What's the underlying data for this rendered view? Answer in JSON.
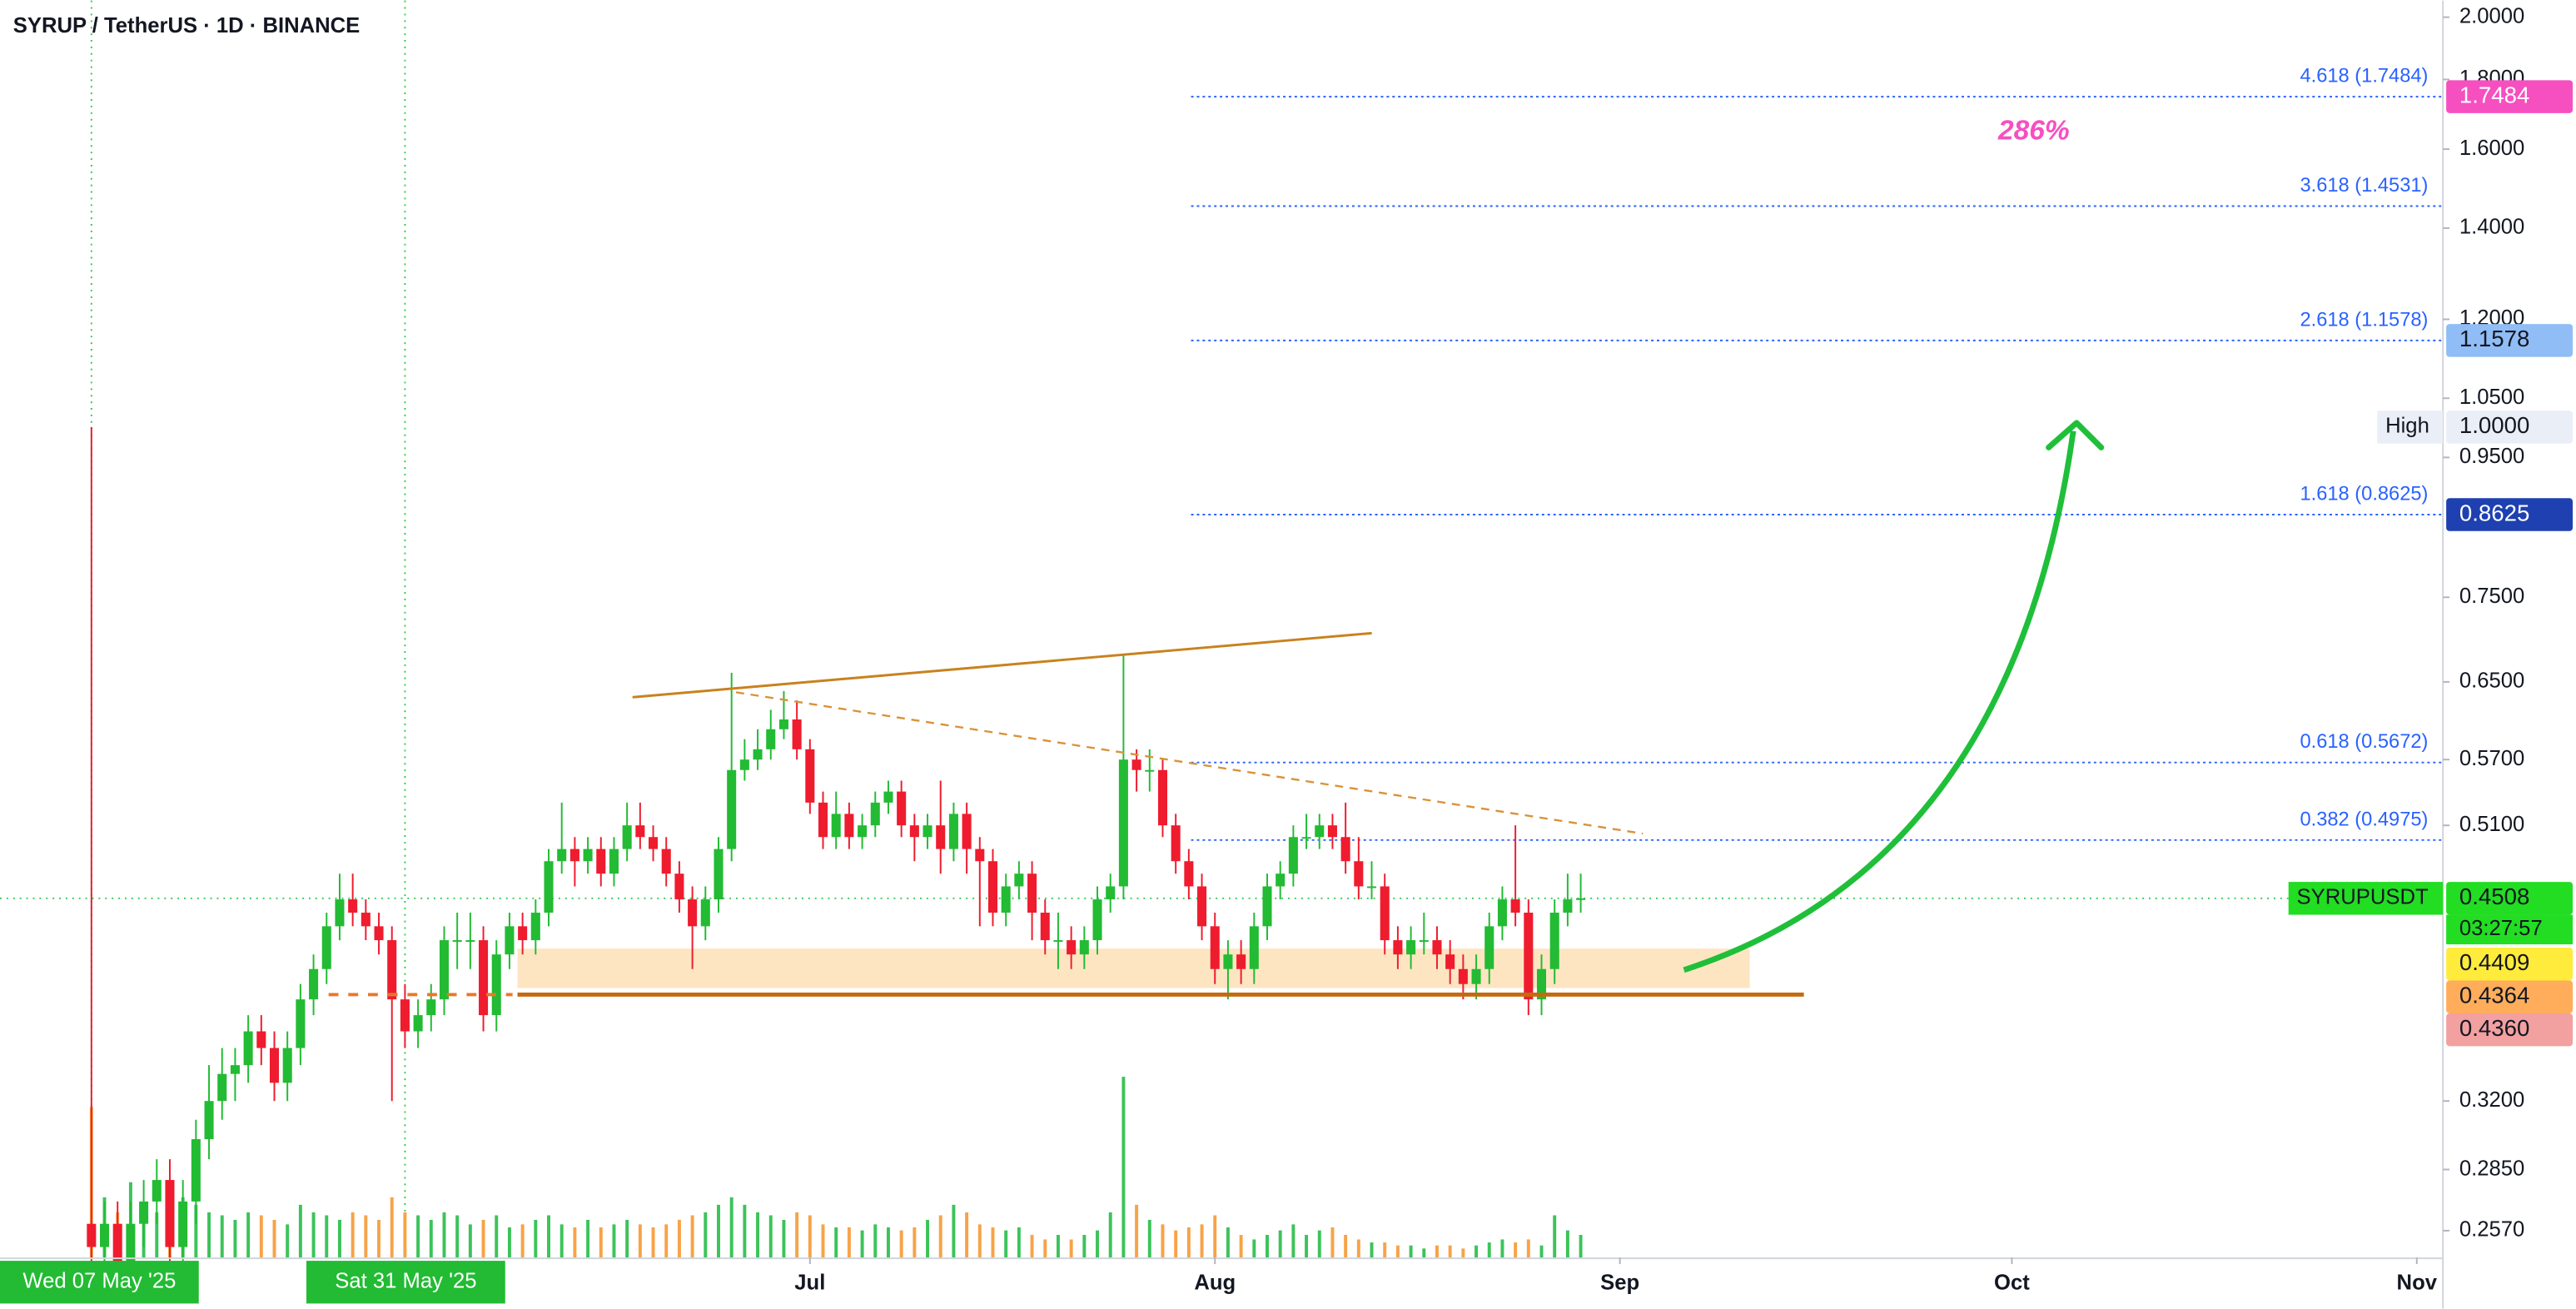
{
  "chart_data": {
    "type": "candlestick",
    "title": "SYRUP / TetherUS · 1D · BINANCE",
    "log_scale": true,
    "ylim": [
      0.2456,
      2.057
    ],
    "yticks": [
      {
        "value": 2,
        "label": "2.0000"
      },
      {
        "value": 1.8,
        "label": "1.8000"
      },
      {
        "value": 1.6,
        "label": "1.6000"
      },
      {
        "value": 1.4,
        "label": "1.4000"
      },
      {
        "value": 1.2,
        "label": "1.2000"
      },
      {
        "value": 1.05,
        "label": "1.0500"
      },
      {
        "value": 0.95,
        "label": "0.9500"
      },
      {
        "value": 0.75,
        "label": "0.7500"
      },
      {
        "value": 0.65,
        "label": "0.6500"
      },
      {
        "value": 0.57,
        "label": "0.5700"
      },
      {
        "value": 0.51,
        "label": "0.5100"
      },
      {
        "value": 0.32,
        "label": "0.3200"
      },
      {
        "value": 0.285,
        "label": "0.2850"
      },
      {
        "value": 0.257,
        "label": "0.2570"
      }
    ],
    "xlim": [
      "2025-04-30",
      "2025-11-03"
    ],
    "xticks": [
      {
        "value": "2025-07-01",
        "label": "Jul"
      },
      {
        "value": "2025-08-01",
        "label": "Aug"
      },
      {
        "value": "2025-09-01",
        "label": "Sep"
      },
      {
        "value": "2025-10-01",
        "label": "Oct"
      },
      {
        "value": "2025-11-01",
        "label": "Nov"
      }
    ],
    "x_highlights": [
      {
        "value": "2025-05-07",
        "label": "Wed 07 May '25"
      },
      {
        "value": "2025-05-31",
        "label": "Sat 31 May '25"
      }
    ],
    "up_color": "#22bb33",
    "down_color": "#ee1c2e",
    "volume_up_color": "#3cc35a",
    "volume_down_color": "#f7a348",
    "x": [
      "2025-05-07",
      "2025-05-08",
      "2025-05-09",
      "2025-05-10",
      "2025-05-11",
      "2025-05-12",
      "2025-05-13",
      "2025-05-14",
      "2025-05-15",
      "2025-05-16",
      "2025-05-17",
      "2025-05-18",
      "2025-05-19",
      "2025-05-20",
      "2025-05-21",
      "2025-05-22",
      "2025-05-23",
      "2025-05-24",
      "2025-05-25",
      "2025-05-26",
      "2025-05-27",
      "2025-05-28",
      "2025-05-29",
      "2025-05-30",
      "2025-05-31",
      "2025-06-01",
      "2025-06-02",
      "2025-06-03",
      "2025-06-04",
      "2025-06-05",
      "2025-06-06",
      "2025-06-07",
      "2025-06-08",
      "2025-06-09",
      "2025-06-10",
      "2025-06-11",
      "2025-06-12",
      "2025-06-13",
      "2025-06-14",
      "2025-06-15",
      "2025-06-16",
      "2025-06-17",
      "2025-06-18",
      "2025-06-19",
      "2025-06-20",
      "2025-06-21",
      "2025-06-22",
      "2025-06-23",
      "2025-06-24",
      "2025-06-25",
      "2025-06-26",
      "2025-06-27",
      "2025-06-28",
      "2025-06-29",
      "2025-06-30",
      "2025-07-01",
      "2025-07-02",
      "2025-07-03",
      "2025-07-04",
      "2025-07-05",
      "2025-07-06",
      "2025-07-07",
      "2025-07-08",
      "2025-07-09",
      "2025-07-10",
      "2025-07-11",
      "2025-07-12",
      "2025-07-13",
      "2025-07-14",
      "2025-07-15",
      "2025-07-16",
      "2025-07-17",
      "2025-07-18",
      "2025-07-19",
      "2025-07-20",
      "2025-07-21",
      "2025-07-22",
      "2025-07-23",
      "2025-07-24",
      "2025-07-25",
      "2025-07-26",
      "2025-07-27",
      "2025-07-28",
      "2025-07-29",
      "2025-07-30",
      "2025-07-31",
      "2025-08-01",
      "2025-08-02",
      "2025-08-03",
      "2025-08-04",
      "2025-08-05",
      "2025-08-06",
      "2025-08-07",
      "2025-08-08",
      "2025-08-09",
      "2025-08-10",
      "2025-08-11",
      "2025-08-12",
      "2025-08-13",
      "2025-08-14",
      "2025-08-15",
      "2025-08-16",
      "2025-08-17",
      "2025-08-18",
      "2025-08-19",
      "2025-08-20",
      "2025-08-21",
      "2025-08-22",
      "2025-08-23",
      "2025-08-24",
      "2025-08-25",
      "2025-08-26",
      "2025-08-27",
      "2025-08-28",
      "2025-08-29"
    ],
    "open": [
      0.26,
      0.25,
      0.26,
      0.24,
      0.26,
      0.27,
      0.28,
      0.25,
      0.27,
      0.3,
      0.32,
      0.335,
      0.34,
      0.36,
      0.35,
      0.33,
      0.35,
      0.38,
      0.4,
      0.43,
      0.45,
      0.44,
      0.43,
      0.42,
      0.38,
      0.36,
      0.37,
      0.38,
      0.42,
      0.42,
      0.42,
      0.37,
      0.41,
      0.43,
      0.42,
      0.44,
      0.48,
      0.49,
      0.48,
      0.49,
      0.47,
      0.49,
      0.51,
      0.5,
      0.49,
      0.47,
      0.45,
      0.43,
      0.45,
      0.49,
      0.56,
      0.57,
      0.58,
      0.6,
      0.61,
      0.58,
      0.53,
      0.5,
      0.52,
      0.5,
      0.51,
      0.53,
      0.54,
      0.51,
      0.5,
      0.51,
      0.49,
      0.52,
      0.49,
      0.48,
      0.44,
      0.46,
      0.47,
      0.44,
      0.42,
      0.42,
      0.41,
      0.42,
      0.45,
      0.46,
      0.57,
      0.56,
      0.56,
      0.51,
      0.48,
      0.46,
      0.43,
      0.4,
      0.41,
      0.4,
      0.43,
      0.46,
      0.47,
      0.5,
      0.5,
      0.51,
      0.5,
      0.48,
      0.46,
      0.46,
      0.42,
      0.41,
      0.42,
      0.42,
      0.41,
      0.4,
      0.39,
      0.4,
      0.43,
      0.45,
      0.44,
      0.38,
      0.4,
      0.44,
      0.45
    ],
    "high": [
      1.0,
      0.27,
      0.27,
      0.27,
      0.28,
      0.29,
      0.29,
      0.28,
      0.31,
      0.34,
      0.35,
      0.35,
      0.37,
      0.37,
      0.36,
      0.36,
      0.39,
      0.41,
      0.44,
      0.47,
      0.47,
      0.45,
      0.44,
      0.43,
      0.39,
      0.38,
      0.39,
      0.43,
      0.44,
      0.44,
      0.43,
      0.42,
      0.44,
      0.44,
      0.45,
      0.49,
      0.53,
      0.5,
      0.5,
      0.5,
      0.5,
      0.53,
      0.53,
      0.51,
      0.5,
      0.48,
      0.46,
      0.46,
      0.5,
      0.66,
      0.59,
      0.6,
      0.62,
      0.64,
      0.63,
      0.59,
      0.54,
      0.54,
      0.53,
      0.52,
      0.54,
      0.55,
      0.55,
      0.52,
      0.52,
      0.55,
      0.53,
      0.53,
      0.5,
      0.49,
      0.47,
      0.48,
      0.48,
      0.45,
      0.44,
      0.43,
      0.43,
      0.46,
      0.47,
      0.68,
      0.58,
      0.58,
      0.57,
      0.52,
      0.49,
      0.47,
      0.44,
      0.42,
      0.42,
      0.44,
      0.47,
      0.48,
      0.51,
      0.52,
      0.52,
      0.52,
      0.53,
      0.5,
      0.48,
      0.47,
      0.43,
      0.43,
      0.44,
      0.43,
      0.42,
      0.41,
      0.41,
      0.44,
      0.46,
      0.51,
      0.45,
      0.41,
      0.45,
      0.47,
      0.47
    ],
    "low": [
      0.24,
      0.24,
      0.23,
      0.23,
      0.25,
      0.26,
      0.24,
      0.24,
      0.26,
      0.29,
      0.31,
      0.32,
      0.33,
      0.34,
      0.32,
      0.32,
      0.34,
      0.37,
      0.39,
      0.42,
      0.43,
      0.42,
      0.41,
      0.32,
      0.35,
      0.35,
      0.36,
      0.37,
      0.4,
      0.4,
      0.36,
      0.36,
      0.4,
      0.41,
      0.41,
      0.43,
      0.47,
      0.46,
      0.47,
      0.46,
      0.46,
      0.48,
      0.49,
      0.48,
      0.46,
      0.44,
      0.4,
      0.42,
      0.44,
      0.48,
      0.55,
      0.56,
      0.57,
      0.59,
      0.57,
      0.52,
      0.49,
      0.49,
      0.49,
      0.49,
      0.5,
      0.52,
      0.5,
      0.48,
      0.49,
      0.47,
      0.48,
      0.47,
      0.43,
      0.43,
      0.43,
      0.45,
      0.42,
      0.41,
      0.4,
      0.4,
      0.4,
      0.41,
      0.44,
      0.45,
      0.54,
      0.54,
      0.5,
      0.47,
      0.45,
      0.42,
      0.39,
      0.38,
      0.39,
      0.39,
      0.42,
      0.45,
      0.46,
      0.49,
      0.49,
      0.49,
      0.47,
      0.45,
      0.45,
      0.41,
      0.4,
      0.4,
      0.41,
      0.4,
      0.39,
      0.38,
      0.38,
      0.39,
      0.42,
      0.43,
      0.37,
      0.37,
      0.39,
      0.43,
      0.44
    ],
    "close": [
      0.25,
      0.26,
      0.24,
      0.26,
      0.27,
      0.28,
      0.25,
      0.27,
      0.3,
      0.32,
      0.335,
      0.34,
      0.36,
      0.35,
      0.33,
      0.35,
      0.38,
      0.4,
      0.43,
      0.45,
      0.44,
      0.43,
      0.42,
      0.38,
      0.36,
      0.37,
      0.38,
      0.42,
      0.42,
      0.42,
      0.37,
      0.41,
      0.43,
      0.42,
      0.44,
      0.48,
      0.49,
      0.48,
      0.49,
      0.47,
      0.49,
      0.51,
      0.5,
      0.49,
      0.47,
      0.45,
      0.43,
      0.45,
      0.49,
      0.56,
      0.57,
      0.58,
      0.6,
      0.61,
      0.58,
      0.53,
      0.5,
      0.52,
      0.5,
      0.51,
      0.53,
      0.54,
      0.51,
      0.5,
      0.51,
      0.49,
      0.52,
      0.49,
      0.48,
      0.44,
      0.46,
      0.47,
      0.44,
      0.42,
      0.42,
      0.41,
      0.42,
      0.45,
      0.46,
      0.57,
      0.56,
      0.56,
      0.51,
      0.48,
      0.46,
      0.43,
      0.4,
      0.41,
      0.4,
      0.43,
      0.46,
      0.47,
      0.5,
      0.5,
      0.51,
      0.5,
      0.48,
      0.46,
      0.46,
      0.42,
      0.41,
      0.42,
      0.42,
      0.41,
      0.4,
      0.39,
      0.4,
      0.43,
      0.45,
      0.44,
      0.38,
      0.4,
      0.44,
      0.45,
      0.4508
    ],
    "volume": [
      100,
      40,
      30,
      50,
      35,
      30,
      45,
      40,
      35,
      30,
      28,
      25,
      30,
      28,
      25,
      22,
      35,
      30,
      28,
      25,
      30,
      28,
      25,
      40,
      30,
      28,
      25,
      30,
      28,
      22,
      25,
      28,
      20,
      22,
      25,
      28,
      22,
      20,
      25,
      20,
      22,
      25,
      22,
      20,
      22,
      25,
      28,
      30,
      35,
      40,
      35,
      30,
      28,
      25,
      30,
      28,
      22,
      20,
      20,
      18,
      22,
      20,
      18,
      20,
      25,
      28,
      35,
      30,
      22,
      20,
      18,
      20,
      15,
      12,
      15,
      12,
      15,
      18,
      30,
      120,
      35,
      25,
      22,
      18,
      20,
      22,
      28,
      20,
      15,
      12,
      15,
      18,
      22,
      15,
      18,
      20,
      15,
      12,
      10,
      10,
      8,
      8,
      6,
      8,
      8,
      6,
      8,
      10,
      12,
      10,
      12,
      8,
      28,
      18,
      15
    ],
    "fib_levels": [
      {
        "value": 1.7484,
        "label": "4.618 (1.7484)"
      },
      {
        "value": 1.4531,
        "label": "3.618 (1.4531)"
      },
      {
        "value": 1.1578,
        "label": "2.618 (1.1578)"
      },
      {
        "value": 0.8625,
        "label": "1.618 (0.8625)"
      },
      {
        "value": 0.5672,
        "label": "0.618 (0.5672)"
      },
      {
        "value": 0.4975,
        "label": "0.382 (0.4975)"
      }
    ],
    "fib_color": "#2962ff",
    "price_tags": [
      {
        "value": 1.7484,
        "label": "1.7484",
        "color": "#f64fc0",
        "text_color": "#ffffff"
      },
      {
        "value": 1.1578,
        "label": "1.1578",
        "color": "#90bdf5",
        "text_color": "#131722"
      },
      {
        "value": 1,
        "label": "1.0000",
        "name": "High",
        "color": "#e9eef7",
        "text_color": "#131722"
      },
      {
        "value": 0.8625,
        "label": "0.8625",
        "color": "#1e40b0",
        "text_color": "#ffffff"
      },
      {
        "value": 0.4508,
        "label": "0.4508",
        "name": "SYRUPUSDT",
        "countdown": "03:27:57",
        "color": "#22dd22",
        "text_color": "#131722"
      },
      {
        "value": 0.4409,
        "label": "0.4409",
        "color": "#ffeb3b",
        "text_color": "#131722"
      },
      {
        "value": 0.4364,
        "label": "0.4364",
        "color": "#ffad5a",
        "text_color": "#131722"
      },
      {
        "value": 0.436,
        "label": "0.4360",
        "color": "#f2a0a0",
        "text_color": "#131722"
      }
    ],
    "annotation": "286%"
  }
}
